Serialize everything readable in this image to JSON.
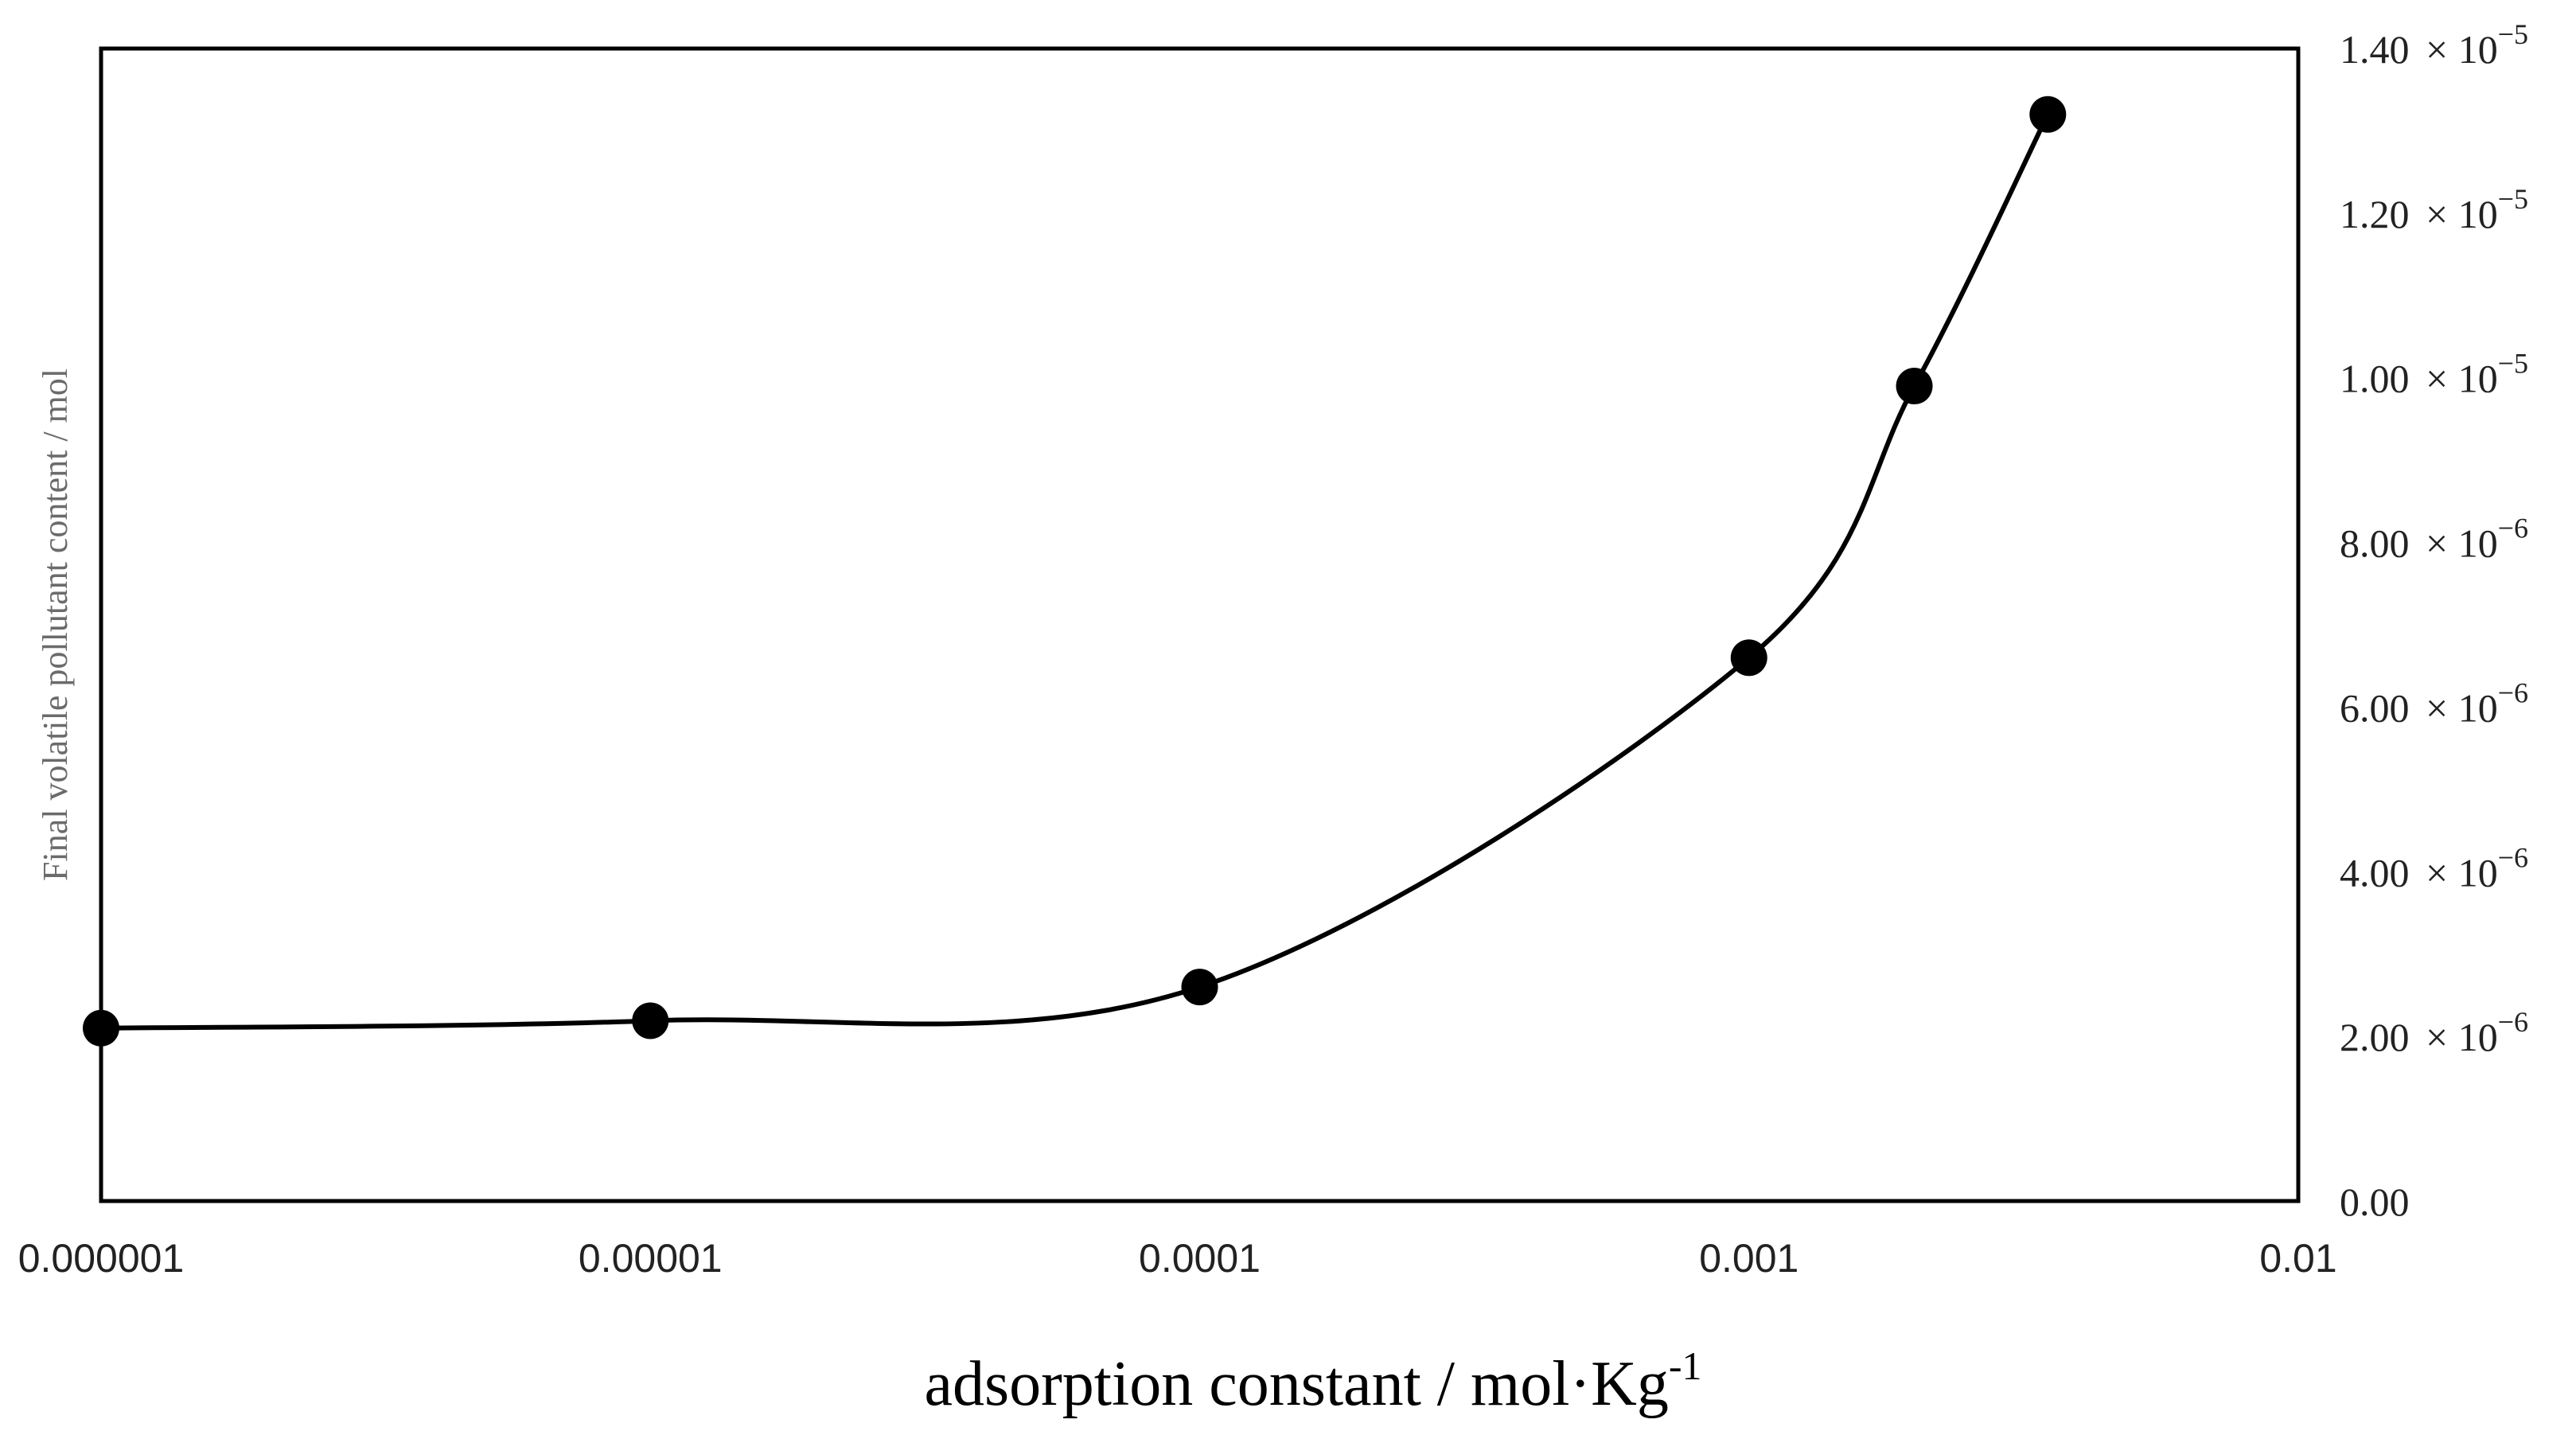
{
  "chart_data": {
    "type": "line",
    "title": "",
    "xlabel": "adsorption constant / mol·Kg",
    "xlabel_superscript": "-1",
    "ylabel": "Final volatile pollutant content / mol",
    "x_scale": "log",
    "xlim": [
      1e-06,
      0.01
    ],
    "ylim": [
      0,
      1.4e-05
    ],
    "y_axis_side": "right",
    "grid": false,
    "legend": "none",
    "x_ticks": [
      {
        "value": 1e-06,
        "label": "0.000001"
      },
      {
        "value": 1e-05,
        "label": "0.00001"
      },
      {
        "value": 0.0001,
        "label": "0.0001"
      },
      {
        "value": 0.001,
        "label": "0.001"
      },
      {
        "value": 0.01,
        "label": "0.01"
      }
    ],
    "y_ticks": [
      {
        "value": 0,
        "mantissa": "0.00",
        "exponent": ""
      },
      {
        "value": 2e-06,
        "mantissa": "2.00",
        "exponent": "−6"
      },
      {
        "value": 4e-06,
        "mantissa": "4.00",
        "exponent": "−6"
      },
      {
        "value": 6e-06,
        "mantissa": "6.00",
        "exponent": "−6"
      },
      {
        "value": 8e-06,
        "mantissa": "8.00",
        "exponent": "−6"
      },
      {
        "value": 1e-05,
        "mantissa": "1.00",
        "exponent": "−5"
      },
      {
        "value": 1.2e-05,
        "mantissa": "1.20",
        "exponent": "−5"
      },
      {
        "value": 1.4e-05,
        "mantissa": "1.40",
        "exponent": "−5"
      }
    ],
    "times_symbol": "×",
    "exponent_base": "10",
    "series": [
      {
        "name": "Final volatile pollutant content",
        "x": [
          1e-06,
          1e-05,
          0.0001,
          0.001,
          0.002,
          0.0035
        ],
        "y": [
          2.1e-06,
          2.19e-06,
          2.6e-06,
          6.6e-06,
          9.9e-06,
          1.32e-05
        ],
        "color": "#000000",
        "marker": "circle",
        "smooth": true
      }
    ]
  }
}
